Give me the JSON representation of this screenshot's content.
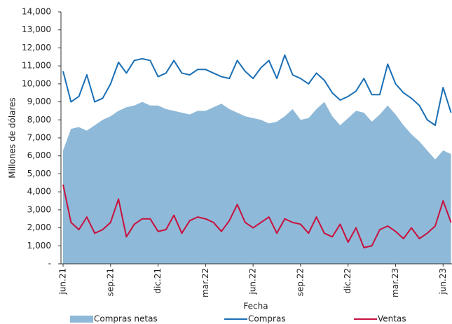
{
  "chart_data": {
    "type": "line",
    "x_label": "Fecha",
    "y_label": "Millones de dólares",
    "categories": [
      "jun.21",
      null,
      null,
      null,
      null,
      null,
      "sep.21",
      null,
      null,
      null,
      null,
      null,
      "dic.21",
      null,
      null,
      null,
      null,
      null,
      "mar.22",
      null,
      null,
      null,
      null,
      null,
      "jun.22",
      null,
      null,
      null,
      null,
      null,
      "sep.22",
      null,
      null,
      null,
      null,
      null,
      "dic.22",
      null,
      null,
      null,
      null,
      null,
      "mar.23",
      null,
      null,
      null,
      null,
      null,
      "jun.23",
      null
    ],
    "series": [
      {
        "name": "Compras netas",
        "kind": "area",
        "color": "#8fb9d8",
        "values": [
          6300,
          7500,
          7600,
          7400,
          7700,
          8000,
          8200,
          8500,
          8700,
          8800,
          9000,
          8800,
          8800,
          8600,
          8500,
          8400,
          8300,
          8500,
          8500,
          8700,
          8900,
          8600,
          8400,
          8200,
          8100,
          8000,
          7800,
          7900,
          8200,
          8600,
          8000,
          8100,
          8600,
          9000,
          8200,
          7700,
          8100,
          8500,
          8400,
          7900,
          8300,
          8800,
          8300,
          7700,
          7200,
          6800,
          6300,
          5800,
          6300,
          6100
        ]
      },
      {
        "name": "Compras",
        "kind": "line",
        "color": "#1a6fb5",
        "values": [
          10700,
          9000,
          9300,
          10500,
          9000,
          9200,
          10000,
          11200,
          10600,
          11300,
          11400,
          11300,
          10400,
          10600,
          11300,
          10600,
          10500,
          10800,
          10800,
          10600,
          10400,
          10300,
          11300,
          10700,
          10300,
          10900,
          11300,
          10300,
          11600,
          10500,
          10300,
          10000,
          10600,
          10200,
          9500,
          9100,
          9300,
          9600,
          10300,
          9400,
          9400,
          11100,
          10000,
          9500,
          9200,
          8800,
          8000,
          7700,
          9800,
          8400
        ]
      },
      {
        "name": "Ventas",
        "kind": "line",
        "color": "#c8103e",
        "values": [
          4400,
          2300,
          1900,
          2600,
          1700,
          1900,
          2300,
          3600,
          1500,
          2200,
          2500,
          2500,
          1800,
          1900,
          2700,
          1700,
          2400,
          2600,
          2500,
          2300,
          1800,
          2400,
          3300,
          2300,
          2000,
          2300,
          2600,
          1700,
          2500,
          2300,
          2200,
          1700,
          2600,
          1700,
          1500,
          2200,
          1200,
          2000,
          900,
          1000,
          1900,
          2100,
          1800,
          1400,
          2000,
          1400,
          1700,
          2100,
          3500,
          2300
        ]
      }
    ],
    "ylim": [
      0,
      14000
    ],
    "yticks": [
      {
        "value": 0,
        "label": "-"
      },
      {
        "value": 1000,
        "label": "1,000"
      },
      {
        "value": 2000,
        "label": "2,000"
      },
      {
        "value": 3000,
        "label": "3,000"
      },
      {
        "value": 4000,
        "label": "4,000"
      },
      {
        "value": 5000,
        "label": "5,000"
      },
      {
        "value": 6000,
        "label": "6,000"
      },
      {
        "value": 7000,
        "label": "7,000"
      },
      {
        "value": 8000,
        "label": "8,000"
      },
      {
        "value": 9000,
        "label": "9,000"
      },
      {
        "value": 10000,
        "label": "10,000"
      },
      {
        "value": 11000,
        "label": "11,000"
      },
      {
        "value": 12000,
        "label": "12,000"
      },
      {
        "value": 13000,
        "label": "13,000"
      },
      {
        "value": 14000,
        "label": "14,000"
      }
    ],
    "grid": false,
    "legend": "bottom"
  }
}
